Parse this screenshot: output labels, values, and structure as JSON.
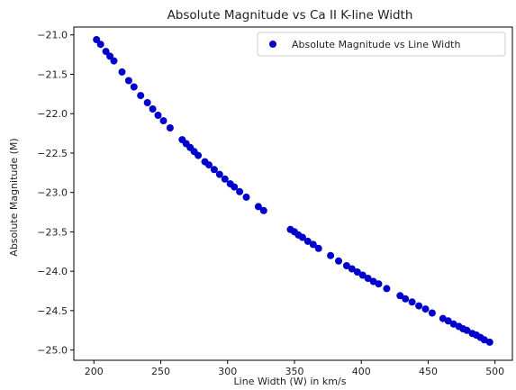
{
  "chart_data": {
    "type": "scatter",
    "title": "Absolute Magnitude vs Ca II K-line Width",
    "xlabel": "Line Width (W) in km/s",
    "ylabel": "Absolute Magnitude (M)",
    "xlim": [
      185,
      513
    ],
    "ylim": [
      -25.13,
      -20.9
    ],
    "xticks": [
      200,
      250,
      300,
      350,
      400,
      450,
      500
    ],
    "yticks": [
      -21.0,
      -21.5,
      -22.0,
      -22.5,
      -23.0,
      -23.5,
      -24.0,
      -24.5,
      -25.0
    ],
    "ytick_labels": [
      "−21.0",
      "−21.5",
      "−22.0",
      "−22.5",
      "−23.0",
      "−23.5",
      "−24.0",
      "−24.5",
      "−25.0"
    ],
    "grid": false,
    "legend": {
      "position": "top-right",
      "entries": [
        "Absolute Magnitude vs Line Width"
      ]
    },
    "colors": {
      "series": "#0000cc"
    },
    "series": [
      {
        "name": "Absolute Magnitude vs Line Width",
        "points": [
          {
            "x": 202,
            "y": -21.06
          },
          {
            "x": 205,
            "y": -21.12
          },
          {
            "x": 209,
            "y": -21.21
          },
          {
            "x": 212,
            "y": -21.27
          },
          {
            "x": 215,
            "y": -21.33
          },
          {
            "x": 221,
            "y": -21.47
          },
          {
            "x": 226,
            "y": -21.58
          },
          {
            "x": 230,
            "y": -21.66
          },
          {
            "x": 235,
            "y": -21.77
          },
          {
            "x": 240,
            "y": -21.86
          },
          {
            "x": 244,
            "y": -21.94
          },
          {
            "x": 248,
            "y": -22.02
          },
          {
            "x": 252,
            "y": -22.09
          },
          {
            "x": 257,
            "y": -22.18
          },
          {
            "x": 266,
            "y": -22.33
          },
          {
            "x": 269,
            "y": -22.38
          },
          {
            "x": 272,
            "y": -22.43
          },
          {
            "x": 275,
            "y": -22.48
          },
          {
            "x": 278,
            "y": -22.53
          },
          {
            "x": 283,
            "y": -22.61
          },
          {
            "x": 286,
            "y": -22.65
          },
          {
            "x": 290,
            "y": -22.71
          },
          {
            "x": 294,
            "y": -22.77
          },
          {
            "x": 298,
            "y": -22.83
          },
          {
            "x": 302,
            "y": -22.89
          },
          {
            "x": 305,
            "y": -22.93
          },
          {
            "x": 309,
            "y": -22.99
          },
          {
            "x": 314,
            "y": -23.06
          },
          {
            "x": 323,
            "y": -23.18
          },
          {
            "x": 327,
            "y": -23.23
          },
          {
            "x": 347,
            "y": -23.47
          },
          {
            "x": 350,
            "y": -23.5
          },
          {
            "x": 353,
            "y": -23.54
          },
          {
            "x": 356,
            "y": -23.57
          },
          {
            "x": 360,
            "y": -23.62
          },
          {
            "x": 364,
            "y": -23.66
          },
          {
            "x": 368,
            "y": -23.71
          },
          {
            "x": 377,
            "y": -23.8
          },
          {
            "x": 383,
            "y": -23.87
          },
          {
            "x": 389,
            "y": -23.93
          },
          {
            "x": 393,
            "y": -23.97
          },
          {
            "x": 397,
            "y": -24.01
          },
          {
            "x": 401,
            "y": -24.05
          },
          {
            "x": 405,
            "y": -24.09
          },
          {
            "x": 409,
            "y": -24.13
          },
          {
            "x": 413,
            "y": -24.16
          },
          {
            "x": 419,
            "y": -24.22
          },
          {
            "x": 429,
            "y": -24.31
          },
          {
            "x": 433,
            "y": -24.35
          },
          {
            "x": 438,
            "y": -24.39
          },
          {
            "x": 443,
            "y": -24.44
          },
          {
            "x": 448,
            "y": -24.48
          },
          {
            "x": 453,
            "y": -24.53
          },
          {
            "x": 461,
            "y": -24.6
          },
          {
            "x": 465,
            "y": -24.63
          },
          {
            "x": 469,
            "y": -24.67
          },
          {
            "x": 473,
            "y": -24.7
          },
          {
            "x": 476,
            "y": -24.73
          },
          {
            "x": 479,
            "y": -24.75
          },
          {
            "x": 483,
            "y": -24.79
          },
          {
            "x": 486,
            "y": -24.81
          },
          {
            "x": 489,
            "y": -24.84
          },
          {
            "x": 492,
            "y": -24.87
          },
          {
            "x": 496,
            "y": -24.9
          }
        ]
      }
    ]
  }
}
